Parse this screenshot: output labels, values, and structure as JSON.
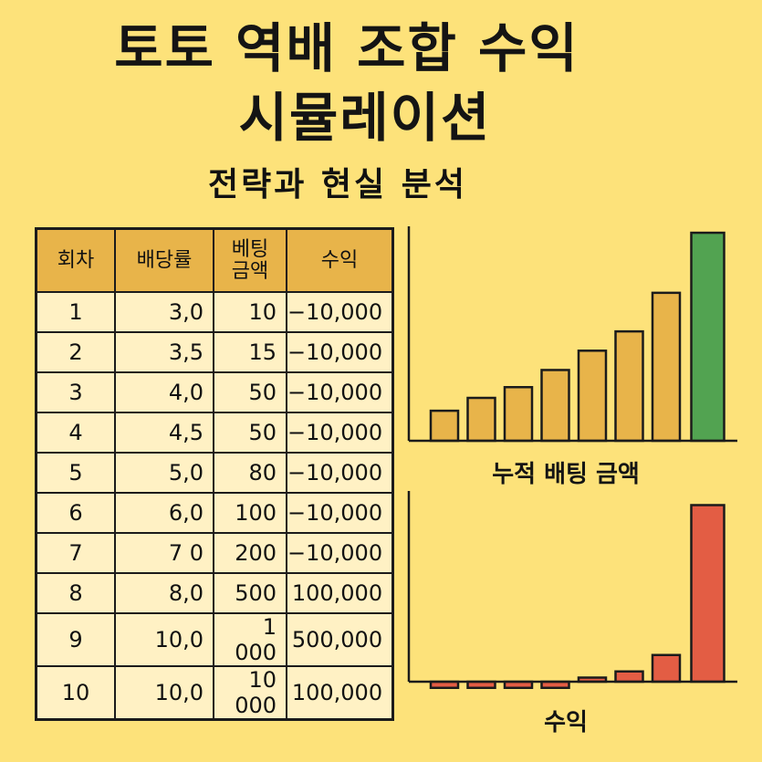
{
  "title_line1": "토토 역배 조합 수익",
  "title_line2": "시뮬레이션",
  "subtitle": "전략과 현실 분석",
  "table": {
    "headers": [
      "회차",
      "배당률",
      "베팅\n금액",
      "수익"
    ],
    "rows": [
      [
        "1",
        "3,0",
        "10",
        "−10,000"
      ],
      [
        "2",
        "3,5",
        "15",
        "−10,000"
      ],
      [
        "3",
        "4,0",
        "50",
        "−10,000"
      ],
      [
        "4",
        "4,5",
        "50",
        "−10,000"
      ],
      [
        "5",
        "5,0",
        "80",
        "−10,000"
      ],
      [
        "6",
        "6,0",
        "100",
        "−10,000"
      ],
      [
        "7",
        "7 0",
        "200",
        "−10,000"
      ],
      [
        "8",
        "8,0",
        "500",
        "100,000"
      ],
      [
        "9",
        "10,0",
        "1 000",
        "500,000"
      ],
      [
        "10",
        "10,0",
        "10 000",
        "100,000"
      ]
    ]
  },
  "chart_data": [
    {
      "type": "bar",
      "xlabel": "누적 배팅 금액",
      "values": [
        1.4,
        2.0,
        2.5,
        3.3,
        4.2,
        5.1,
        6.9,
        9.7
      ],
      "highlight_last": true,
      "colors": {
        "bar": "#e8b44a",
        "highlight": "#52a351",
        "stroke": "#1b1b1b"
      }
    },
    {
      "type": "bar",
      "xlabel": "수익",
      "values": [
        -0.3,
        -0.3,
        -0.3,
        -0.3,
        0.2,
        0.5,
        1.3,
        8.6
      ],
      "highlight_last": true,
      "colors": {
        "bar": "#e35d44",
        "highlight": "#e35d44",
        "stroke": "#1b1b1b"
      }
    }
  ]
}
